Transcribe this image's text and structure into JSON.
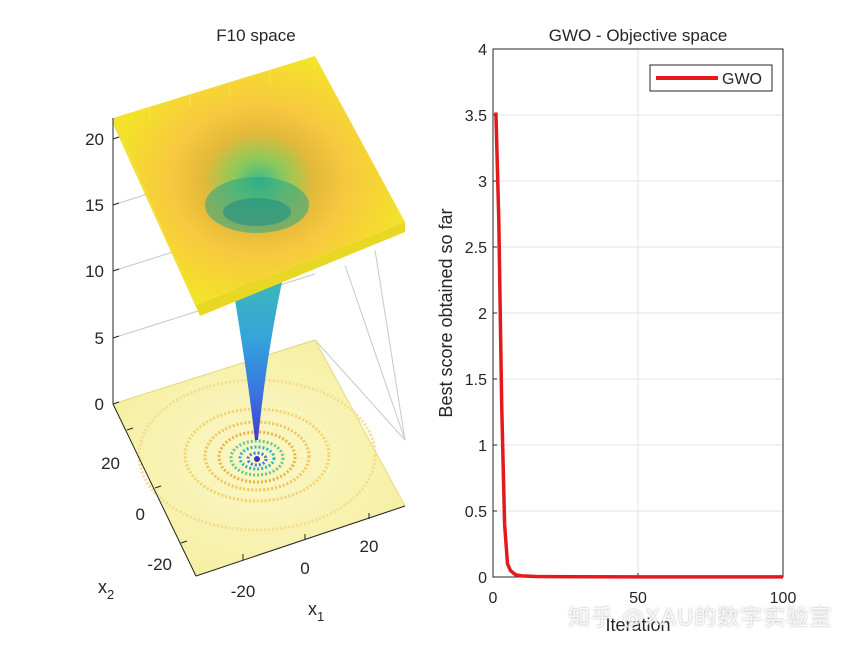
{
  "chart_data": [
    {
      "type": "surface",
      "title": "F10 space",
      "xlabel": "x",
      "xlabel_sub": "1",
      "ylabel": "x",
      "ylabel_sub": "2",
      "x_ticks": [
        "-20",
        "0",
        "20"
      ],
      "y_ticks": [
        "-20",
        "0",
        "20"
      ],
      "z_ticks": [
        "0",
        "5",
        "10",
        "15",
        "20"
      ],
      "zlim": [
        0,
        22
      ],
      "xlim": [
        -32,
        32
      ],
      "ylim": [
        -32,
        32
      ],
      "colormap": "parula",
      "contour_floor": true,
      "grid": true
    },
    {
      "type": "line",
      "title": "GWO - Objective space",
      "xlabel": "Iteration",
      "ylabel": "Best score obtained so far",
      "xlim": [
        0,
        100
      ],
      "ylim": [
        0,
        4
      ],
      "x_ticks": [
        "0",
        "50",
        "100"
      ],
      "y_ticks": [
        "0",
        "0.5",
        "1",
        "1.5",
        "2",
        "2.5",
        "3",
        "3.5",
        "4"
      ],
      "grid": true,
      "legend_position": "top-right",
      "series": [
        {
          "name": "GWO",
          "color": "#e3191c",
          "x": [
            1,
            2,
            3,
            4,
            5,
            6,
            7,
            8,
            10,
            15,
            20,
            30,
            50,
            100
          ],
          "y": [
            3.52,
            2.7,
            1.3,
            0.4,
            0.1,
            0.05,
            0.03,
            0.015,
            0.008,
            0.004,
            0.003,
            0.002,
            0.001,
            0.0005
          ]
        }
      ]
    }
  ],
  "watermark": "知乎 @XAU的数字实验室"
}
